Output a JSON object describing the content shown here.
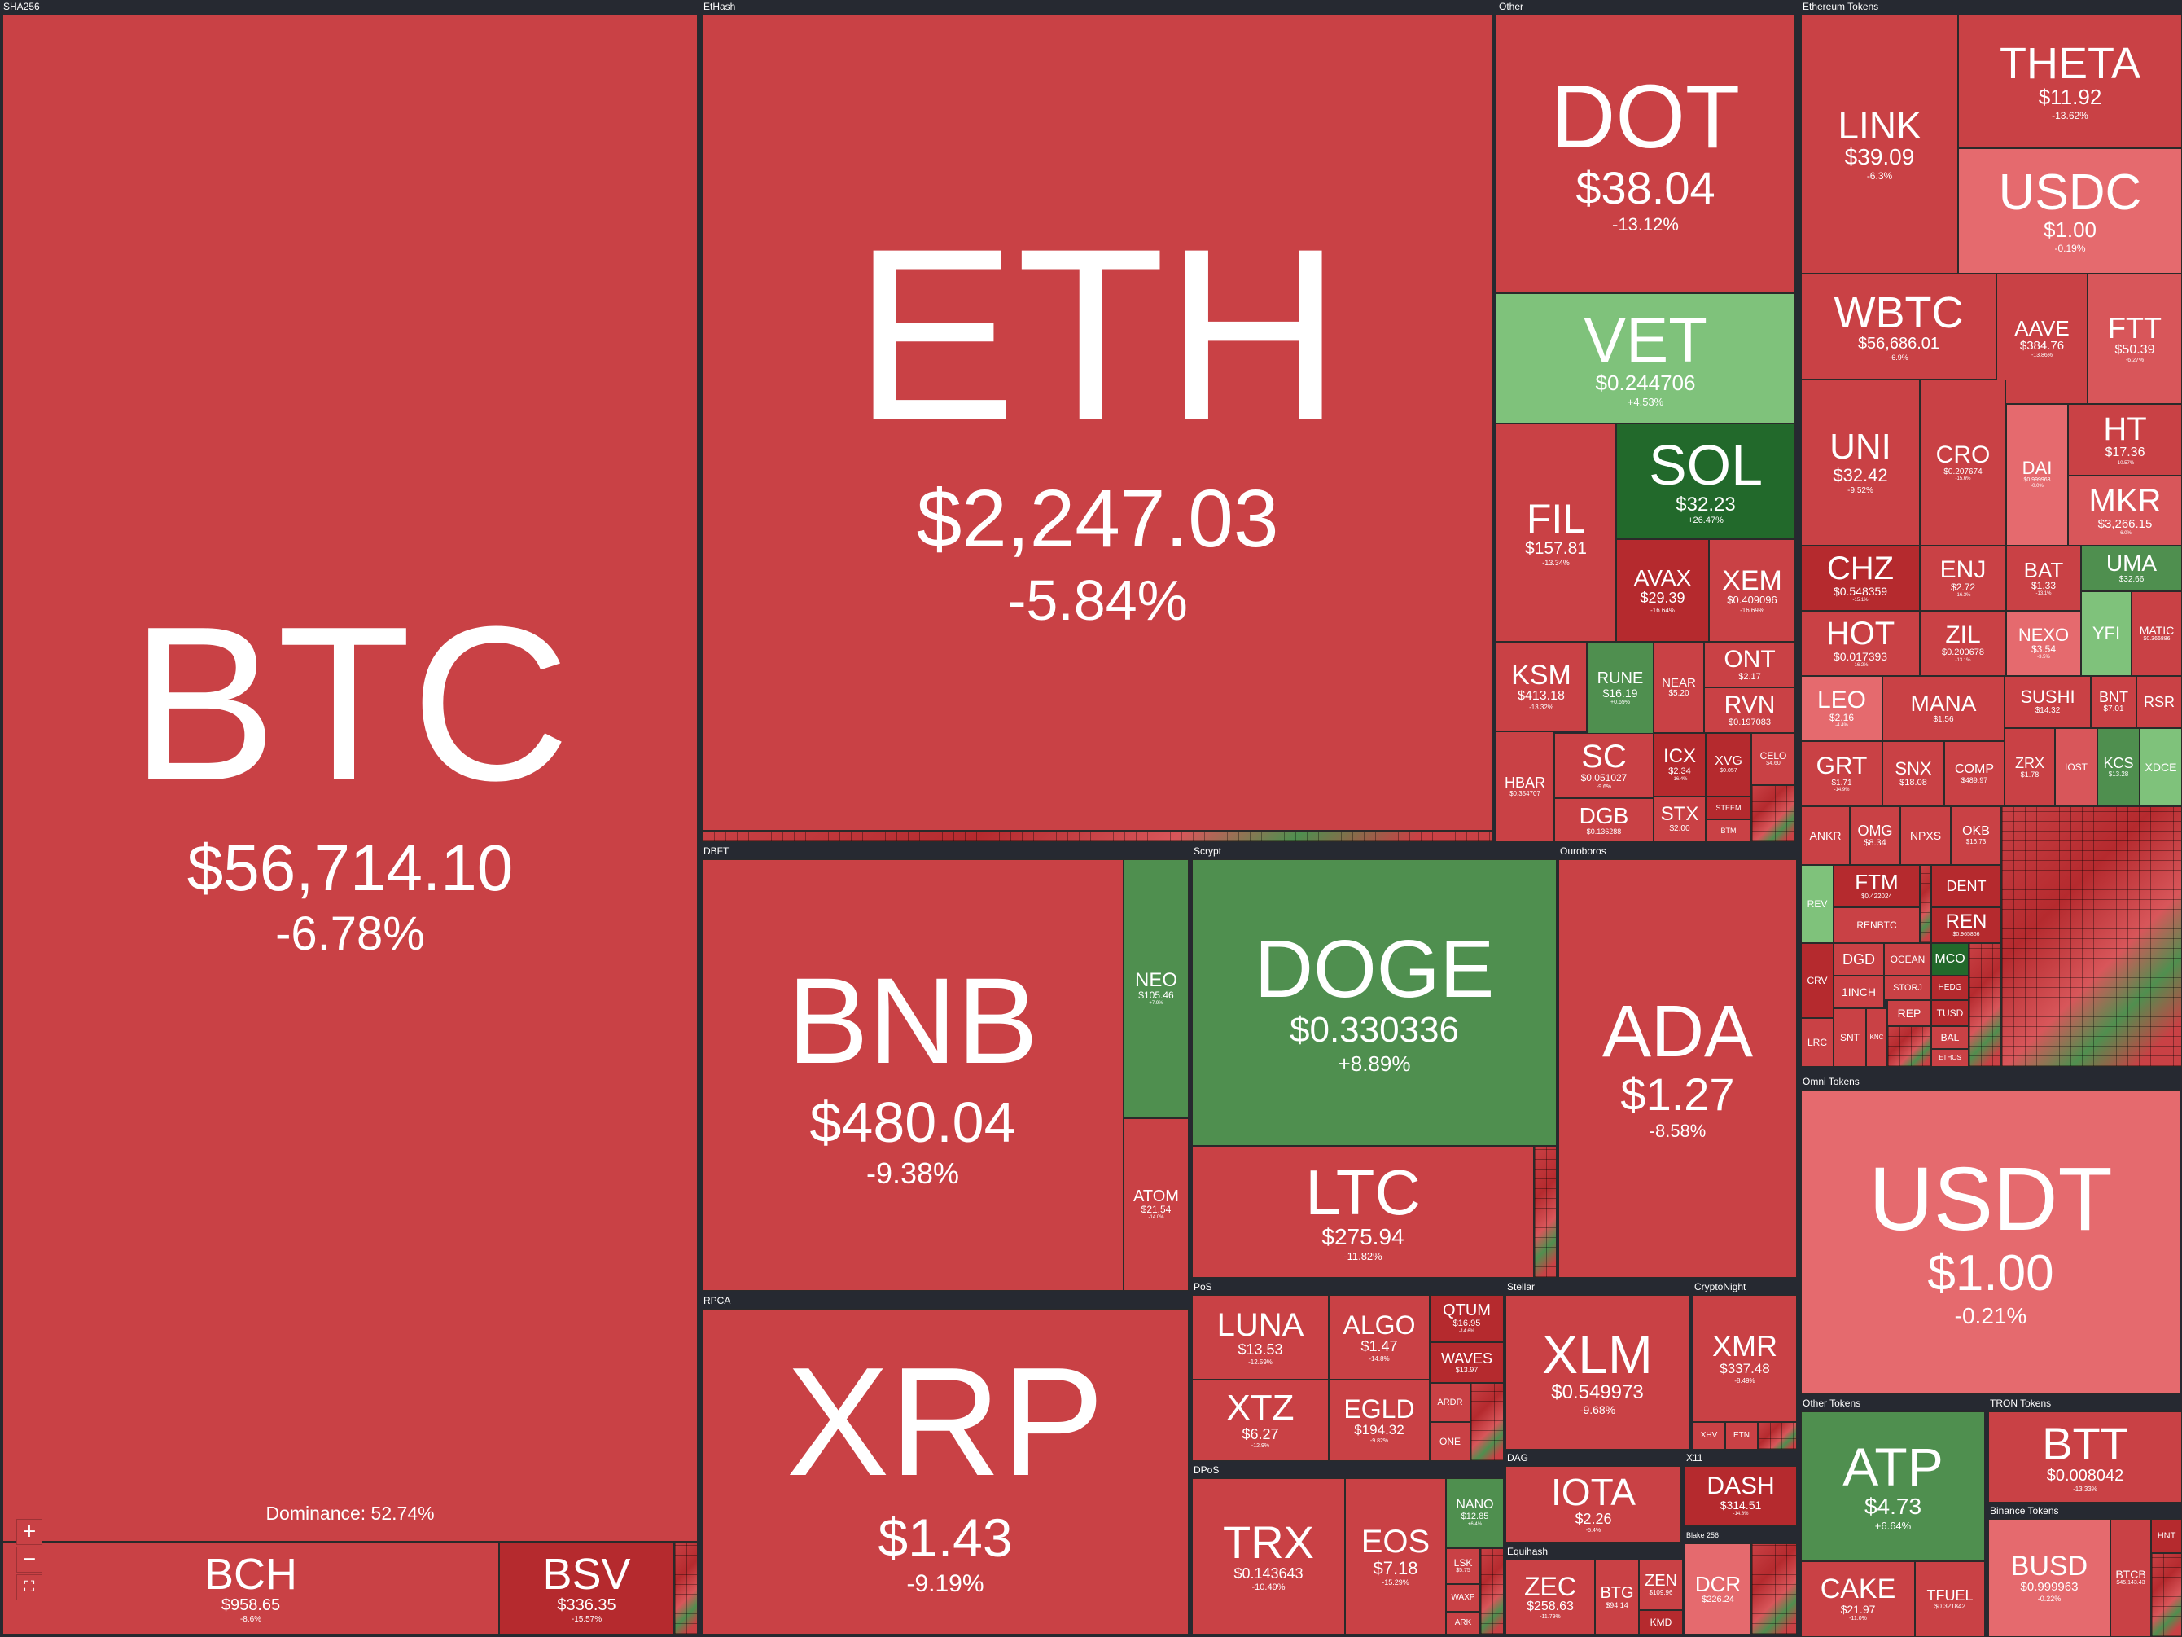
{
  "groups": {
    "sha256": "SHA256",
    "ethash": "EtHash",
    "other": "Other",
    "eth_tokens": "Ethereum Tokens",
    "dbft": "DBFT",
    "scrypt": "Scrypt",
    "ouroboros": "Ouroboros",
    "rpca": "RPCA",
    "pos": "PoS",
    "stellar": "Stellar",
    "cryptonight": "CryptoNight",
    "dpos": "DPoS",
    "dag": "DAG",
    "x11": "X11",
    "equihash": "Equihash",
    "blake256": "Blake 256",
    "omni": "Omni Tokens",
    "other_tokens": "Other Tokens",
    "tron": "TRON Tokens",
    "binance": "Binance Tokens"
  },
  "dominance": "Dominance: 52.74%",
  "controls": {
    "zoom_in": "+",
    "zoom_out": "−",
    "fullscreen": "⛶"
  },
  "coins": {
    "btc": {
      "sym": "BTC",
      "price": "$56,714.10",
      "chg": "-6.78%"
    },
    "bch": {
      "sym": "BCH",
      "price": "$958.65",
      "chg": "-8.6%"
    },
    "bsv": {
      "sym": "BSV",
      "price": "$336.35",
      "chg": "-15.57%"
    },
    "eth": {
      "sym": "ETH",
      "price": "$2,247.03",
      "chg": "-5.84%"
    },
    "dot": {
      "sym": "DOT",
      "price": "$38.04",
      "chg": "-13.12%"
    },
    "vet": {
      "sym": "VET",
      "price": "$0.244706",
      "chg": "+4.53%"
    },
    "fil": {
      "sym": "FIL",
      "price": "$157.81",
      "chg": "-13.34%"
    },
    "sol": {
      "sym": "SOL",
      "price": "$32.23",
      "chg": "+26.47%"
    },
    "avax": {
      "sym": "AVAX",
      "price": "$29.39",
      "chg": "-16.64%"
    },
    "xem": {
      "sym": "XEM",
      "price": "$0.409096",
      "chg": "-16.69%"
    },
    "ksm": {
      "sym": "KSM",
      "price": "$413.18",
      "chg": "-13.32%"
    },
    "rune": {
      "sym": "RUNE",
      "price": "$16.19",
      "chg": "+0.69%"
    },
    "near": {
      "sym": "NEAR",
      "price": "$5.20",
      "chg": ""
    },
    "ont": {
      "sym": "ONT",
      "price": "$2.17",
      "chg": ""
    },
    "rvn": {
      "sym": "RVN",
      "price": "$0.197083",
      "chg": ""
    },
    "hbar": {
      "sym": "HBAR",
      "price": "$0.354707",
      "chg": ""
    },
    "sc": {
      "sym": "SC",
      "price": "$0.051027",
      "chg": "-9.6%"
    },
    "icx": {
      "sym": "ICX",
      "price": "$2.34",
      "chg": "-16.4%"
    },
    "xvg": {
      "sym": "XVG",
      "price": "$0.057",
      "chg": ""
    },
    "celo": {
      "sym": "CELO",
      "price": "$4.60",
      "chg": ""
    },
    "dgb": {
      "sym": "DGB",
      "price": "$0.136288",
      "chg": ""
    },
    "stx": {
      "sym": "STX",
      "price": "$2.00",
      "chg": "-16.8%"
    },
    "steem": {
      "sym": "STEEM",
      "price": "",
      "chg": ""
    },
    "btm": {
      "sym": "BTM",
      "price": "",
      "chg": ""
    },
    "theta": {
      "sym": "THETA",
      "price": "$11.92",
      "chg": "-13.62%"
    },
    "link": {
      "sym": "LINK",
      "price": "$39.09",
      "chg": "-6.3%"
    },
    "usdc": {
      "sym": "USDC",
      "price": "$1.00",
      "chg": "-0.19%"
    },
    "wbtc": {
      "sym": "WBTC",
      "price": "$56,686.01",
      "chg": "-6.9%"
    },
    "aave": {
      "sym": "AAVE",
      "price": "$384.76",
      "chg": "-13.86%"
    },
    "ftt": {
      "sym": "FTT",
      "price": "$50.39",
      "chg": "-6.27%"
    },
    "uni": {
      "sym": "UNI",
      "price": "$32.42",
      "chg": "-9.52%"
    },
    "cro": {
      "sym": "CRO",
      "price": "$0.207674",
      "chg": "-15.6%"
    },
    "dai": {
      "sym": "DAI",
      "price": "$0.999963",
      "chg": "-0.0%"
    },
    "ht": {
      "sym": "HT",
      "price": "$17.36",
      "chg": "-10.57%"
    },
    "mkr": {
      "sym": "MKR",
      "price": "$3,266.15",
      "chg": "-6.0%"
    },
    "chz": {
      "sym": "CHZ",
      "price": "$0.548359",
      "chg": "-15.1%"
    },
    "enj": {
      "sym": "ENJ",
      "price": "$2.72",
      "chg": "-16.3%"
    },
    "bat": {
      "sym": "BAT",
      "price": "$1.33",
      "chg": "-13.1%"
    },
    "uma": {
      "sym": "UMA",
      "price": "$32.66",
      "chg": "+0.5%"
    },
    "hot": {
      "sym": "HOT",
      "price": "$0.017393",
      "chg": "-16.2%"
    },
    "zil": {
      "sym": "ZIL",
      "price": "$0.200678",
      "chg": "-13.1%"
    },
    "nexo": {
      "sym": "NEXO",
      "price": "$3.54",
      "chg": "-3.5%"
    },
    "yfi": {
      "sym": "YFI",
      "price": "",
      "chg": ""
    },
    "matic": {
      "sym": "MATIC",
      "price": "$0.366886",
      "chg": ""
    },
    "leo": {
      "sym": "LEO",
      "price": "$2.16",
      "chg": "-4.4%"
    },
    "mana": {
      "sym": "MANA",
      "price": "$1.56",
      "chg": ""
    },
    "sushi": {
      "sym": "SUSHI",
      "price": "$14.32",
      "chg": ""
    },
    "bnt": {
      "sym": "BNT",
      "price": "$7.01",
      "chg": ""
    },
    "rsr": {
      "sym": "RSR",
      "price": "",
      "chg": ""
    },
    "grt": {
      "sym": "GRT",
      "price": "$1.71",
      "chg": "-14.9%"
    },
    "snx": {
      "sym": "SNX",
      "price": "$18.08",
      "chg": ""
    },
    "comp": {
      "sym": "COMP",
      "price": "$489.97",
      "chg": ""
    },
    "zrx": {
      "sym": "ZRX",
      "price": "$1.78",
      "chg": ""
    },
    "iost": {
      "sym": "IOST",
      "price": "",
      "chg": ""
    },
    "kcs": {
      "sym": "KCS",
      "price": "$13.28",
      "chg": ""
    },
    "xdce": {
      "sym": "XDCE",
      "price": "",
      "chg": ""
    },
    "ankr": {
      "sym": "ANKR",
      "price": "",
      "chg": ""
    },
    "omg": {
      "sym": "OMG",
      "price": "$8.34",
      "chg": ""
    },
    "npxs": {
      "sym": "NPXS",
      "price": "",
      "chg": ""
    },
    "okb": {
      "sym": "OKB",
      "price": "$16.73",
      "chg": ""
    },
    "rev": {
      "sym": "REV",
      "price": "",
      "chg": ""
    },
    "ftm": {
      "sym": "FTM",
      "price": "$0.422024",
      "chg": ""
    },
    "dent": {
      "sym": "DENT",
      "price": "",
      "chg": ""
    },
    "renbtc": {
      "sym": "RENBTC",
      "price": "",
      "chg": ""
    },
    "ren": {
      "sym": "REN",
      "price": "$0.965866",
      "chg": ""
    },
    "crv": {
      "sym": "CRV",
      "price": "",
      "chg": ""
    },
    "dgd": {
      "sym": "DGD",
      "price": "",
      "chg": ""
    },
    "ocean": {
      "sym": "OCEAN",
      "price": "",
      "chg": ""
    },
    "mco": {
      "sym": "MCO",
      "price": "",
      "chg": ""
    },
    "1inch": {
      "sym": "1INCH",
      "price": "",
      "chg": ""
    },
    "storj": {
      "sym": "STORJ",
      "price": "",
      "chg": ""
    },
    "hedg": {
      "sym": "HEDG",
      "price": "",
      "chg": ""
    },
    "lrc": {
      "sym": "LRC",
      "price": "",
      "chg": ""
    },
    "snt": {
      "sym": "SNT",
      "price": "",
      "chg": ""
    },
    "knc": {
      "sym": "KNC",
      "price": "",
      "chg": ""
    },
    "rep": {
      "sym": "REP",
      "price": "",
      "chg": ""
    },
    "tusd": {
      "sym": "TUSD",
      "price": "",
      "chg": ""
    },
    "bal": {
      "sym": "BAL",
      "price": "",
      "chg": ""
    },
    "ethos": {
      "sym": "ETHOS",
      "price": "",
      "chg": ""
    },
    "bnb": {
      "sym": "BNB",
      "price": "$480.04",
      "chg": "-9.38%"
    },
    "neo": {
      "sym": "NEO",
      "price": "$105.46",
      "chg": "+7.9%"
    },
    "atom": {
      "sym": "ATOM",
      "price": "$21.54",
      "chg": "-14.0%"
    },
    "doge": {
      "sym": "DOGE",
      "price": "$0.330336",
      "chg": "+8.89%"
    },
    "ltc": {
      "sym": "LTC",
      "price": "$275.94",
      "chg": "-11.82%"
    },
    "ada": {
      "sym": "ADA",
      "price": "$1.27",
      "chg": "-8.58%"
    },
    "xrp": {
      "sym": "XRP",
      "price": "$1.43",
      "chg": "-9.19%"
    },
    "luna": {
      "sym": "LUNA",
      "price": "$13.53",
      "chg": "-12.59%"
    },
    "algo": {
      "sym": "ALGO",
      "price": "$1.47",
      "chg": "-14.8%"
    },
    "qtum": {
      "sym": "QTUM",
      "price": "$16.95",
      "chg": "-14.6%"
    },
    "waves": {
      "sym": "WAVES",
      "price": "$13.97",
      "chg": ""
    },
    "xtz": {
      "sym": "XTZ",
      "price": "$6.27",
      "chg": "-12.9%"
    },
    "egld": {
      "sym": "EGLD",
      "price": "$194.32",
      "chg": "-9.82%"
    },
    "ardr": {
      "sym": "ARDR",
      "price": "",
      "chg": ""
    },
    "one": {
      "sym": "ONE",
      "price": "",
      "chg": ""
    },
    "xlm": {
      "sym": "XLM",
      "price": "$0.549973",
      "chg": "-9.68%"
    },
    "xmr": {
      "sym": "XMR",
      "price": "$337.48",
      "chg": "-8.49%"
    },
    "xhv": {
      "sym": "XHV",
      "price": "",
      "chg": ""
    },
    "etn": {
      "sym": "ETN",
      "price": "",
      "chg": ""
    },
    "trx": {
      "sym": "TRX",
      "price": "$0.143643",
      "chg": "-10.49%"
    },
    "eos": {
      "sym": "EOS",
      "price": "$7.18",
      "chg": "-15.29%"
    },
    "nano": {
      "sym": "NANO",
      "price": "$12.85",
      "chg": "+6.4%"
    },
    "lsk": {
      "sym": "LSK",
      "price": "$5.75",
      "chg": ""
    },
    "waxp": {
      "sym": "WAXP",
      "price": "",
      "chg": ""
    },
    "ark": {
      "sym": "ARK",
      "price": "",
      "chg": ""
    },
    "iota": {
      "sym": "IOTA",
      "price": "$2.26",
      "chg": "-5.4%"
    },
    "dash": {
      "sym": "DASH",
      "price": "$314.51",
      "chg": "-14.8%"
    },
    "zec": {
      "sym": "ZEC",
      "price": "$258.63",
      "chg": "-11.79%"
    },
    "btg": {
      "sym": "BTG",
      "price": "$94.14",
      "chg": ""
    },
    "zen": {
      "sym": "ZEN",
      "price": "$109.96",
      "chg": ""
    },
    "kmd": {
      "sym": "KMD",
      "price": "",
      "chg": ""
    },
    "dcr": {
      "sym": "DCR",
      "price": "$226.24",
      "chg": ""
    },
    "usdt": {
      "sym": "USDT",
      "price": "$1.00",
      "chg": "-0.21%"
    },
    "atp": {
      "sym": "ATP",
      "price": "$4.73",
      "chg": "+6.64%"
    },
    "cake": {
      "sym": "CAKE",
      "price": "$21.97",
      "chg": "-11.0%"
    },
    "tfuel": {
      "sym": "TFUEL",
      "price": "$0.321842",
      "chg": ""
    },
    "btt": {
      "sym": "BTT",
      "price": "$0.008042",
      "chg": "-13.33%"
    },
    "busd": {
      "sym": "BUSD",
      "price": "$0.999963",
      "chg": "-0.22%"
    },
    "btcb": {
      "sym": "BTCB",
      "price": "$45,143.43",
      "chg": ""
    },
    "hnt": {
      "sym": "HNT",
      "price": "",
      "chg": ""
    }
  }
}
